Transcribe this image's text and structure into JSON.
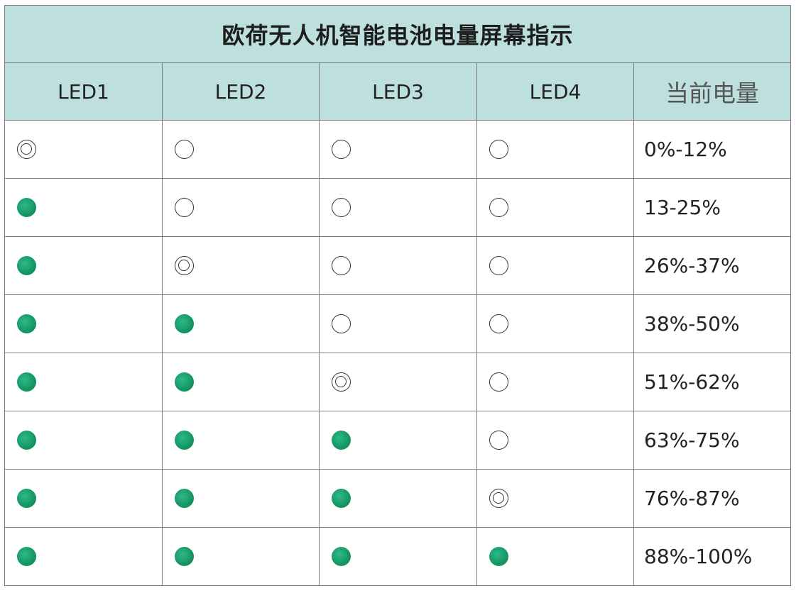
{
  "title": "欧荷无人机智能电池电量屏幕指示",
  "columns": [
    "LED1",
    "LED2",
    "LED3",
    "LED4",
    "当前电量"
  ],
  "legend_states": {
    "on": "solid green dot (lit)",
    "off": "empty circle (unlit)",
    "blink": "double circle (blinking)"
  },
  "colors": {
    "header_background": "#bde0de",
    "led_on": "#179966",
    "grid_line": "#7b7b7b"
  },
  "rows": [
    {
      "leds": [
        "blink",
        "off",
        "off",
        "off"
      ],
      "level": "0%-12%"
    },
    {
      "leds": [
        "on",
        "off",
        "off",
        "off"
      ],
      "level": "13-25%"
    },
    {
      "leds": [
        "on",
        "blink",
        "off",
        "off"
      ],
      "level": "26%-37%"
    },
    {
      "leds": [
        "on",
        "on",
        "off",
        "off"
      ],
      "level": "38%-50%"
    },
    {
      "leds": [
        "on",
        "on",
        "blink",
        "off"
      ],
      "level": "51%-62%"
    },
    {
      "leds": [
        "on",
        "on",
        "on",
        "off"
      ],
      "level": "63%-75%"
    },
    {
      "leds": [
        "on",
        "on",
        "on",
        "blink"
      ],
      "level": "76%-87%"
    },
    {
      "leds": [
        "on",
        "on",
        "on",
        "on"
      ],
      "level": "88%-100%"
    }
  ]
}
